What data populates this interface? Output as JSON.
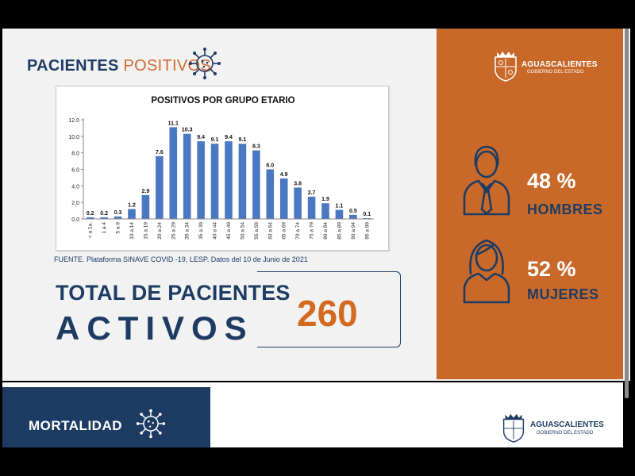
{
  "header": {
    "title_bold": "PACIENTES",
    "title_light": "POSITIVOS"
  },
  "chart_data": {
    "type": "bar",
    "title": "POSITIVOS POR GRUPO ETARIO",
    "categories": [
      "< a 1a.",
      "1 a 4",
      "5 a 9",
      "10 a 14",
      "15 a 19",
      "20 a 24",
      "25 a 29",
      "30 a 34",
      "35 a 39",
      "40 a 44",
      "45 a 49",
      "50 a 54",
      "55 a 59",
      "60 a 64",
      "65 a 69",
      "70 a 74",
      "75 a 79",
      "80 a 84",
      "85 a 89",
      "90 a 94",
      "95 a 99"
    ],
    "values": [
      0.2,
      0.2,
      0.3,
      1.2,
      2.9,
      7.6,
      11.1,
      10.3,
      9.4,
      9.1,
      9.4,
      9.1,
      8.3,
      6.0,
      4.9,
      3.8,
      2.7,
      1.9,
      1.1,
      0.5,
      0.1
    ],
    "value_labels": [
      "0.2",
      "0.2",
      "0.3",
      "1.2",
      "2.9",
      "7.6",
      "11.1",
      "10.3",
      "9.4",
      "9.1",
      "9.4",
      "9.1",
      "8.3",
      "6.0",
      "4.9",
      "3.8",
      "2.7",
      "1.9",
      "1.1",
      "0.5",
      "0.1"
    ],
    "ylim": [
      0,
      12
    ],
    "yticks": [
      0,
      2,
      4,
      6,
      8,
      10,
      12
    ],
    "ytick_labels": [
      "0.0",
      "2.0",
      "4.0",
      "6.0",
      "8.0",
      "10.0",
      "12.0"
    ],
    "xlabel": "",
    "ylabel": "",
    "grid": false,
    "bar_color": "#4a78c2"
  },
  "source_note": "FUENTE. Plataforma SINAVE COVID -19, LESP. Datos del 10 de Junio de 2021",
  "total": {
    "line1": "TOTAL DE PACIENTES",
    "line2": "ACTIVOS",
    "value": "260"
  },
  "government": {
    "name": "AGUASCALIENTES",
    "subtitle": "GOBIERNO DEL ESTADO"
  },
  "gender": {
    "men": {
      "percent": "48 %",
      "label": "HOMBRES",
      "icon": "man-icon"
    },
    "women": {
      "percent": "52 %",
      "label": "MUJERES",
      "icon": "woman-icon"
    }
  },
  "next_section": {
    "title": "MORTALIDAD"
  },
  "colors": {
    "navy": "#1e3c63",
    "orange": "#c8692a",
    "accent_number": "#d46a1f",
    "bar": "#4a78c2"
  }
}
